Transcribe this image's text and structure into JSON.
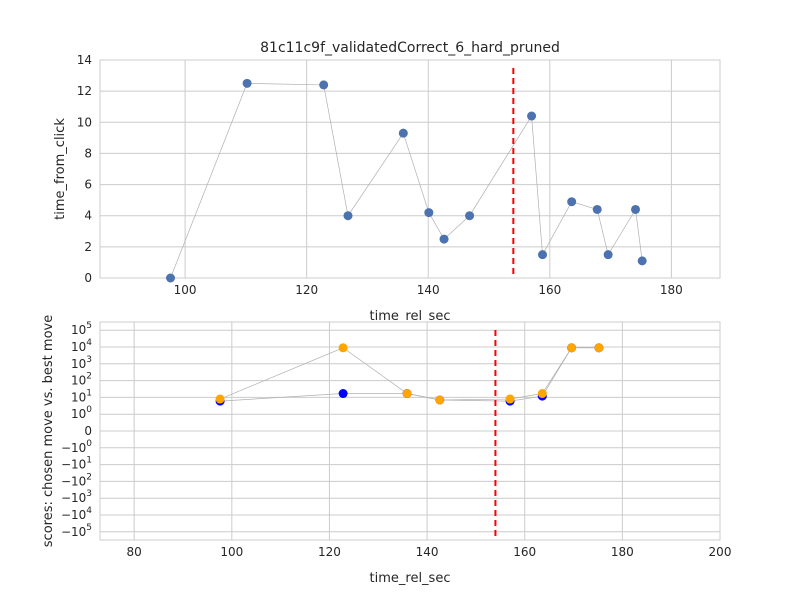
{
  "chart_data": [
    {
      "type": "scatter",
      "title": "81c11c9f_validatedCorrect_6_hard_pruned",
      "xlabel": "time_rel_sec",
      "ylabel": "time_from_click",
      "xlim": [
        86,
        188
      ],
      "ylim": [
        0,
        14
      ],
      "x_ticks": [
        "100",
        "120",
        "140",
        "160",
        "180"
      ],
      "y_ticks": [
        "0",
        "2",
        "4",
        "6",
        "8",
        "10",
        "12",
        "14"
      ],
      "grid": true,
      "colors": {
        "points": "#4c72b0",
        "line": "#b0b0b0",
        "vline": "#ff0000"
      },
      "vline_x": 154,
      "series": [
        {
          "x": [
            97.6,
            110.2,
            122.8,
            126.8,
            135.9,
            140.1,
            142.6,
            146.8,
            157.0,
            158.8,
            163.6,
            167.8,
            169.6,
            174.1,
            175.2
          ],
          "y": [
            0.0,
            12.5,
            12.4,
            4.0,
            9.3,
            4.2,
            2.5,
            4.0,
            10.4,
            1.5,
            4.9,
            4.4,
            1.5,
            4.4,
            1.1
          ]
        }
      ]
    },
    {
      "type": "scatter",
      "title": "",
      "xlabel": "time_rel_sec",
      "ylabel": "scores: chosen move vs. best move",
      "yscale": "symlog",
      "xlim": [
        73,
        200
      ],
      "x_ticks": [
        "80",
        "100",
        "120",
        "140",
        "160",
        "180",
        "200"
      ],
      "y_ticks": [
        "10^5",
        "10^4",
        "10^3",
        "10^2",
        "10^1",
        "10^0",
        "0",
        "-10^0",
        "-10^1",
        "-10^2",
        "-10^3",
        "-10^4",
        "-10^5"
      ],
      "grid": true,
      "colors": {
        "chosen": "#0000ff",
        "best": "#ffa500",
        "line": "#b0b0b0",
        "vline": "#ff0000"
      },
      "vline_x": 154,
      "series": [
        {
          "color_key": "chosen",
          "x": [
            97.6,
            122.8,
            135.9,
            142.6,
            157.0,
            163.6,
            169.6,
            175.2
          ],
          "y": [
            6,
            17,
            17,
            7,
            6,
            12,
            9000,
            9000
          ]
        },
        {
          "color_key": "best",
          "x": [
            97.6,
            122.8,
            135.9,
            142.6,
            157.0,
            163.6,
            169.6,
            175.2
          ],
          "y": [
            8,
            9000,
            17,
            7,
            8,
            17,
            9000,
            9000
          ]
        }
      ]
    }
  ]
}
